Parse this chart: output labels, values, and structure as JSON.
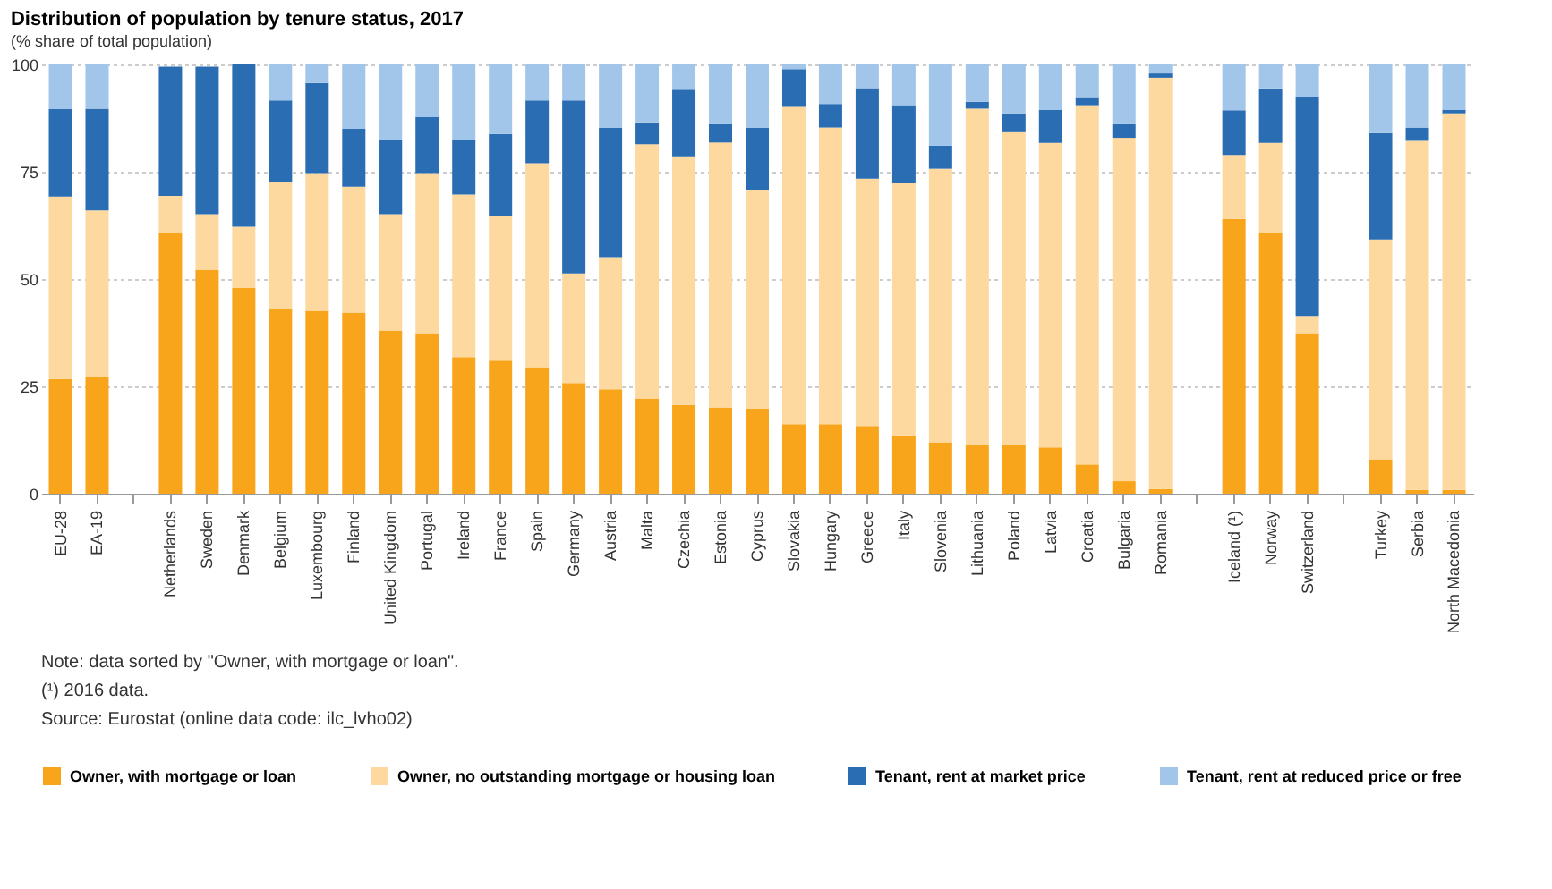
{
  "chart_data": {
    "type": "bar",
    "stacked": true,
    "title": "Distribution of population by tenure status, 2017",
    "subtitle": "(% share of total population)",
    "categories": [
      "EU-28",
      "EA-19",
      null,
      "Netherlands",
      "Sweden",
      "Denmark",
      "Belgium",
      "Luxembourg",
      "Finland",
      "United Kingdom",
      "Portugal",
      "Ireland",
      "France",
      "Spain",
      "Germany",
      "Austria",
      "Malta",
      "Czechia",
      "Estonia",
      "Cyprus",
      "Slovakia",
      "Hungary",
      "Greece",
      "Italy",
      "Slovenia",
      "Lithuania",
      "Poland",
      "Latvia",
      "Croatia",
      "Bulgaria",
      "Romania",
      null,
      "Iceland (¹)",
      "Norway",
      "Switzerland",
      null,
      "Turkey",
      "Serbia",
      "North Macedonia"
    ],
    "series": [
      {
        "name": "Owner, with mortgage or loan",
        "color": "#f9a51b",
        "values": [
          26.7,
          27.3,
          null,
          60.8,
          52.1,
          47.9,
          42.9,
          42.6,
          42.2,
          38.0,
          37.4,
          31.8,
          31.0,
          29.5,
          25.8,
          24.3,
          22.2,
          20.7,
          20.1,
          19.8,
          16.2,
          16.2,
          15.8,
          13.6,
          12.0,
          11.4,
          11.4,
          10.8,
          6.8,
          2.9,
          1.1,
          null,
          64.0,
          60.7,
          37.4,
          null,
          8.0,
          0.9,
          0.9
        ]
      },
      {
        "name": "Owner, no outstanding mortgage or housing loan",
        "color": "#fdd9a0",
        "values": [
          42.5,
          38.7,
          null,
          8.6,
          13.0,
          14.3,
          29.8,
          32.1,
          29.3,
          27.1,
          37.3,
          37.9,
          33.6,
          47.5,
          25.5,
          30.8,
          59.2,
          57.9,
          61.7,
          50.9,
          73.9,
          69.1,
          57.6,
          58.7,
          63.7,
          78.3,
          72.8,
          70.9,
          83.7,
          80.0,
          95.8,
          null,
          14.9,
          21.0,
          4.0,
          null,
          51.2,
          81.3,
          87.7
        ]
      },
      {
        "name": "Tenant, rent at market price",
        "color": "#2a6db3",
        "values": [
          20.4,
          23.7,
          null,
          30.1,
          34.4,
          37.8,
          18.9,
          21.0,
          13.5,
          17.3,
          13.0,
          12.7,
          19.2,
          14.6,
          40.3,
          30.1,
          5.1,
          15.5,
          4.3,
          14.5,
          8.8,
          5.5,
          21.1,
          18.2,
          5.4,
          1.6,
          4.4,
          7.7,
          1.7,
          3.2,
          1.0,
          null,
          10.4,
          12.7,
          51.0,
          null,
          24.8,
          3.1,
          0.8
        ]
      },
      {
        "name": "Tenant, rent at reduced price or free",
        "color": "#a2c6ea",
        "values": [
          10.4,
          10.3,
          null,
          null,
          null,
          0.0,
          8.4,
          4.3,
          15.0,
          17.6,
          12.3,
          17.6,
          16.2,
          8.4,
          8.4,
          14.8,
          13.5,
          5.9,
          13.9,
          14.8,
          1.1,
          9.2,
          5.5,
          9.5,
          18.9,
          8.7,
          11.4,
          10.6,
          7.8,
          13.9,
          2.1,
          null,
          10.7,
          5.6,
          7.6,
          null,
          16.0,
          14.7,
          10.6
        ]
      }
    ],
    "ylim": [
      0,
      100
    ],
    "yticks": [
      0,
      25,
      50,
      75,
      100
    ],
    "grid": "y",
    "legend": "bottom",
    "annotations": [
      "Note: data sorted by \"Owner, with mortgage or loan\".",
      "(¹) 2016 data.",
      "Source: Eurostat (online data code: ilc_lvho02)"
    ]
  }
}
